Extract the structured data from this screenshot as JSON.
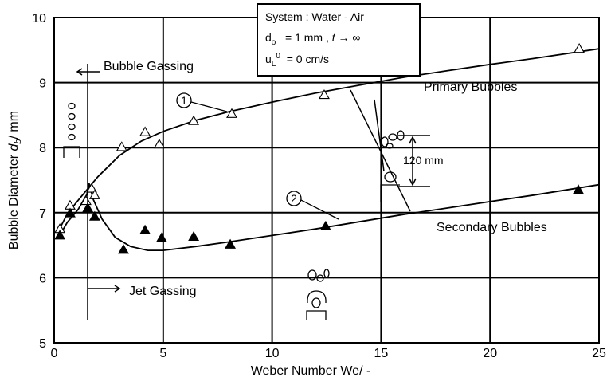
{
  "chart_data": {
    "type": "scatter",
    "xlabel": {
      "text": "Weber Number We/ -"
    },
    "ylabel": {
      "main": "Bubble Diameter ",
      "var": "d",
      "sub": "b",
      "rest": "/ mm"
    },
    "xlim": [
      0,
      25
    ],
    "ylim": [
      5,
      10
    ],
    "xticks": [
      0,
      5,
      10,
      15,
      20,
      25
    ],
    "yticks": [
      5,
      6,
      7,
      8,
      9,
      10
    ],
    "grid": true,
    "series": [
      {
        "name": "Primary Bubbles",
        "marker": "open-triangle",
        "color": "#000000",
        "x": [
          0.26,
          0.73,
          1.46,
          1.72,
          1.86,
          3.1,
          4.17,
          4.82,
          6.4,
          8.15,
          12.39,
          24.09
        ],
        "values": [
          6.75,
          7.11,
          7.18,
          7.37,
          7.27,
          8.01,
          8.24,
          8.05,
          8.41,
          8.52,
          8.81,
          9.52
        ]
      },
      {
        "name": "Secondary Bubbles",
        "marker": "filled-triangle",
        "color": "#000000",
        "x": [
          0.26,
          0.73,
          1.54,
          1.86,
          3.18,
          4.17,
          4.93,
          6.4,
          8.08,
          12.46,
          24.05
        ],
        "values": [
          6.65,
          6.99,
          7.07,
          6.94,
          6.43,
          6.73,
          6.61,
          6.63,
          6.51,
          6.79,
          7.35
        ]
      }
    ],
    "curves": [
      {
        "label": "1",
        "x": [
          0.2,
          0.6,
          1,
          1.5,
          2,
          3,
          4,
          5,
          6.5,
          8,
          10,
          12,
          14,
          16,
          18,
          20,
          22,
          25
        ],
        "values": [
          6.72,
          6.98,
          7.15,
          7.35,
          7.55,
          7.88,
          8.1,
          8.25,
          8.42,
          8.55,
          8.7,
          8.84,
          8.96,
          9.08,
          9.18,
          9.28,
          9.37,
          9.52
        ]
      },
      {
        "label": "2",
        "x": [
          0.2,
          0.6,
          1.1,
          1.5,
          1.6,
          1.8,
          2.2,
          2.8,
          3.5,
          4.3,
          5,
          6.5,
          8,
          10,
          12,
          14,
          16,
          18,
          20,
          22,
          25
        ],
        "values": [
          6.62,
          6.85,
          7.05,
          7.28,
          7.45,
          7.2,
          6.9,
          6.62,
          6.48,
          6.42,
          6.42,
          6.48,
          6.55,
          6.65,
          6.75,
          6.86,
          6.97,
          7.07,
          7.17,
          7.27,
          7.43
        ]
      }
    ],
    "annotations": {
      "bubble_gassing": "Bubble Gassing",
      "jet_gassing": "Jet Gassing",
      "distance": "120 mm"
    },
    "info_box": {
      "line1": "System :  Water - Air",
      "line2": {
        "main": "d",
        "sub": "o",
        "rest": "   = 1 mm , ",
        "var": "t",
        "end": " → ∞"
      },
      "line3": {
        "main": "u",
        "sub": "L",
        "sup": "0",
        "rest": "  = 0 cm/s"
      }
    }
  }
}
